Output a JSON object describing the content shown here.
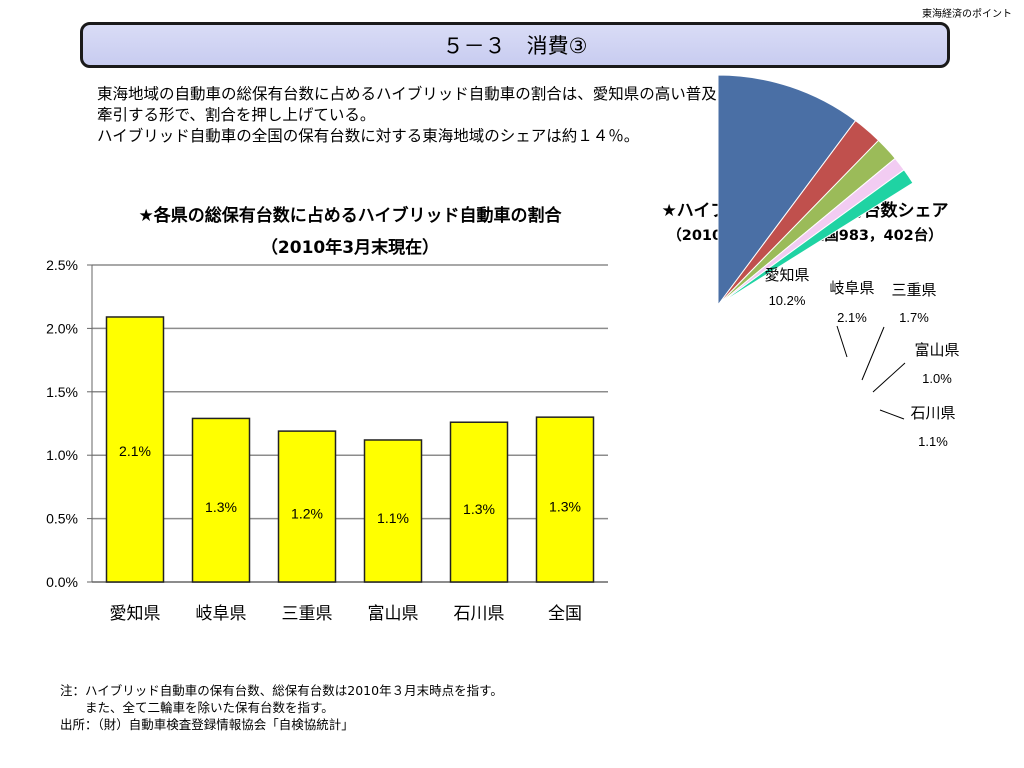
{
  "header": {
    "tag": "東海経済のポイント"
  },
  "title": "５－３　消費③",
  "summary": [
    "東海地域の自動車の総保有台数に占めるハイブリッド自動車の割合は、愛知県の高い普及率が",
    "牽引する形で、割合を押し上げている。",
    "ハイブリッド自動車の全国の保有台数に対する東海地域のシェアは約１４％。"
  ],
  "bar_title": [
    "★各県の総保有台数に占めるハイブリッド自動車の割合",
    "（2010年3月末現在）"
  ],
  "pie_title": [
    "★ハイブリッド自動車保有台数シェア",
    "（2010年3月末現在 全国983，402台）"
  ],
  "notes": [
    "注：ハイブリッド自動車の保有台数、総保有台数は2010年３月末時点を指す。",
    "また、全て二輪車を除いた保有台数を指す。",
    "出所：（財）自動車検査登録情報協会「自検協統計」"
  ],
  "chart_data": [
    {
      "type": "bar",
      "title": "★各県の総保有台数に占めるハイブリッド自動車の割合",
      "subtitle": "（2010年3月末現在）",
      "categories": [
        "愛知県",
        "岐阜県",
        "三重県",
        "富山県",
        "石川県",
        "全国"
      ],
      "values": [
        2.09,
        1.29,
        1.19,
        1.12,
        1.26,
        1.3
      ],
      "data_labels": [
        "2.1%",
        "1.3%",
        "1.2%",
        "1.1%",
        "1.3%",
        "1.3%"
      ],
      "yticks": [
        "0.0%",
        "0.5%",
        "1.0%",
        "1.5%",
        "2.0%",
        "2.5%"
      ],
      "ylim": [
        0,
        2.5
      ],
      "grid": true,
      "bar_color": "#ffff00"
    },
    {
      "type": "pie",
      "title": "★ハイブリッド自動車保有台数シェア",
      "subtitle": "（2010年3月末現在 全国983，402台）",
      "slices": [
        {
          "name": "愛知県",
          "value": 10.2,
          "label": "10.2%",
          "color": "#4a6fa5"
        },
        {
          "name": "岐阜県",
          "value": 2.1,
          "label": "2.1%",
          "color": "#c0504d"
        },
        {
          "name": "三重県",
          "value": 1.7,
          "label": "1.7%",
          "color": "#9bbb59"
        },
        {
          "name": "富山県",
          "value": 1.0,
          "label": "1.0%",
          "color": "#f2ccf2"
        },
        {
          "name": "石川県",
          "value": 1.1,
          "label": "1.1%",
          "color": "#1fd3a3"
        }
      ]
    }
  ]
}
